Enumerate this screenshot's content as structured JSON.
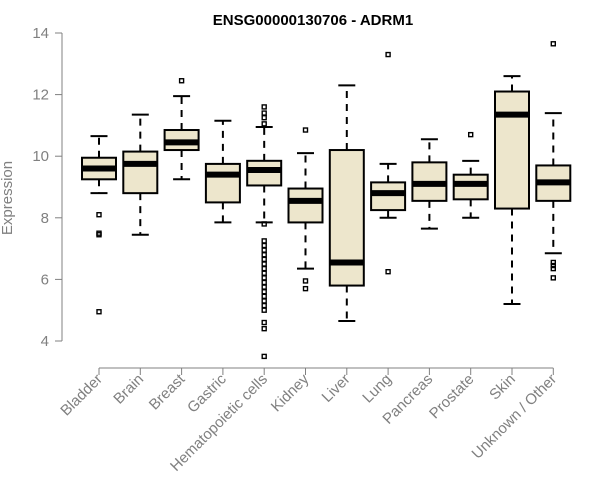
{
  "chart_data": {
    "type": "boxplot",
    "title": "ENSG00000130706 - ADRM1",
    "xlabel": "",
    "ylabel": "Expression",
    "ylim": [
      3.2,
      14.3
    ],
    "yticks": [
      4,
      6,
      8,
      10,
      12,
      14
    ],
    "grid": false,
    "box_color": "#ede6cc",
    "categories": [
      "Bladder",
      "Brain",
      "Breast",
      "Gastric",
      "Hematopoietic cells",
      "Kidney",
      "Liver",
      "Lung",
      "Pancreas",
      "Prostate",
      "Skin",
      "Unknown / Other"
    ],
    "boxes": [
      {
        "min": 8.8,
        "q1": 9.25,
        "median": 9.6,
        "q3": 9.95,
        "max": 10.65,
        "outliers": [
          8.1,
          7.5,
          7.45,
          4.95
        ]
      },
      {
        "min": 7.45,
        "q1": 8.8,
        "median": 9.75,
        "q3": 10.15,
        "max": 11.35,
        "outliers": []
      },
      {
        "min": 9.25,
        "q1": 10.2,
        "median": 10.45,
        "q3": 10.85,
        "max": 11.95,
        "outliers": [
          12.45
        ]
      },
      {
        "min": 7.85,
        "q1": 8.5,
        "median": 9.4,
        "q3": 9.75,
        "max": 11.15,
        "outliers": []
      },
      {
        "min": 7.85,
        "q1": 9.05,
        "median": 9.55,
        "q3": 9.85,
        "max": 10.95,
        "outliers": [
          11.6,
          11.4,
          11.25,
          11.05,
          7.8,
          7.25,
          7.1,
          6.95,
          6.8,
          6.65,
          6.5,
          6.35,
          6.2,
          6.05,
          5.9,
          5.75,
          5.6,
          5.45,
          5.3,
          5.15,
          5.0,
          4.6,
          4.4,
          3.5
        ]
      },
      {
        "min": 6.35,
        "q1": 7.85,
        "median": 8.55,
        "q3": 8.95,
        "max": 10.1,
        "outliers": [
          10.85,
          5.95,
          5.7
        ]
      },
      {
        "min": 4.65,
        "q1": 5.8,
        "median": 6.55,
        "q3": 10.2,
        "max": 12.3,
        "outliers": []
      },
      {
        "min": 8.0,
        "q1": 8.25,
        "median": 8.8,
        "q3": 9.15,
        "max": 9.75,
        "outliers": [
          13.3,
          6.25
        ]
      },
      {
        "min": 7.65,
        "q1": 8.55,
        "median": 9.1,
        "q3": 9.8,
        "max": 10.55,
        "outliers": []
      },
      {
        "min": 8.0,
        "q1": 8.6,
        "median": 9.1,
        "q3": 9.4,
        "max": 9.85,
        "outliers": [
          10.7
        ]
      },
      {
        "min": 5.2,
        "q1": 8.3,
        "median": 11.35,
        "q3": 12.1,
        "max": 12.6,
        "outliers": []
      },
      {
        "min": 6.85,
        "q1": 8.55,
        "median": 9.15,
        "q3": 9.7,
        "max": 11.4,
        "outliers": [
          13.65,
          6.55,
          6.45,
          6.35,
          6.05
        ]
      }
    ]
  }
}
